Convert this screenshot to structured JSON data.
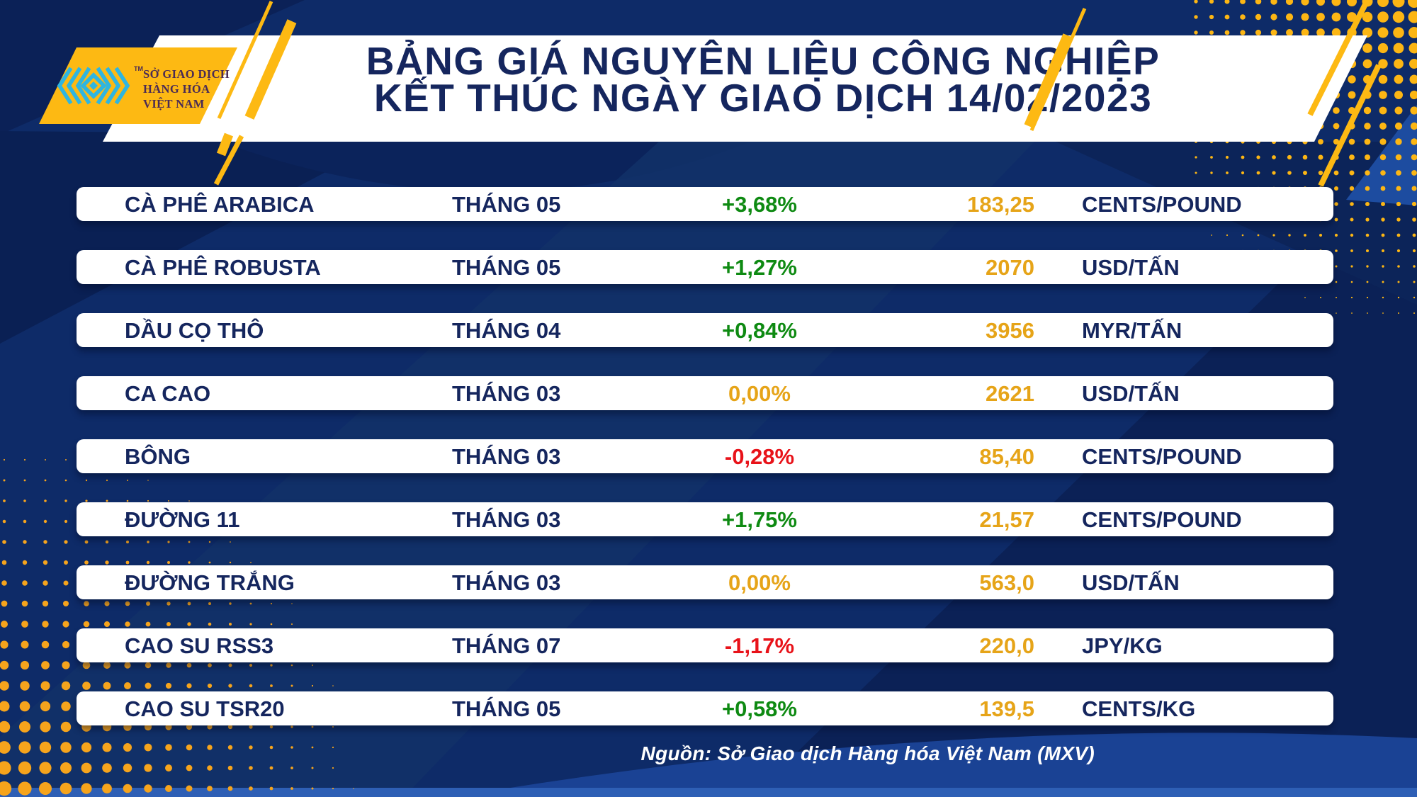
{
  "header": {
    "logo": {
      "org_line1": "SỞ GIAO DỊCH",
      "org_line2": "HÀNG HÓA",
      "org_line3": "VIỆT NAM",
      "trademark": "TM"
    },
    "title_line1": "BẢNG GIÁ NGUYÊN LIỆU CÔNG NGHIỆP",
    "title_line2": "KẾT THÚC NGÀY GIAO DỊCH 14/02/2023"
  },
  "chart_data": {
    "type": "table",
    "title": "BẢNG GIÁ NGUYÊN LIỆU CÔNG NGHIỆP KẾT THÚC NGÀY GIAO DỊCH 14/02/2023",
    "rows": [
      {
        "name": "CÀ PHÊ ARABICA",
        "month": "THÁNG 05",
        "change": "+3,68%",
        "price": "183,25",
        "unit": "CENTS/POUND"
      },
      {
        "name": "CÀ PHÊ ROBUSTA",
        "month": "THÁNG 05",
        "change": "+1,27%",
        "price": "2070",
        "unit": "USD/TẤN"
      },
      {
        "name": "DẦU CỌ THÔ",
        "month": "THÁNG 04",
        "change": "+0,84%",
        "price": "3956",
        "unit": "MYR/TẤN"
      },
      {
        "name": "CA CAO",
        "month": "THÁNG 03",
        "change": "0,00%",
        "price": "2621",
        "unit": "USD/TẤN"
      },
      {
        "name": "BÔNG",
        "month": "THÁNG 03",
        "change": "-0,28%",
        "price": "85,40",
        "unit": "CENTS/POUND"
      },
      {
        "name": "ĐƯỜNG 11",
        "month": "THÁNG 03",
        "change": "+1,75%",
        "price": "21,57",
        "unit": "CENTS/POUND"
      },
      {
        "name": "ĐƯỜNG TRẮNG",
        "month": "THÁNG 03",
        "change": "0,00%",
        "price": "563,0",
        "unit": "USD/TẤN"
      },
      {
        "name": "CAO SU RSS3",
        "month": "THÁNG 07",
        "change": "-1,17%",
        "price": "220,0",
        "unit": "JPY/KG"
      },
      {
        "name": "CAO SU TSR20",
        "month": "THÁNG 05",
        "change": "+0,58%",
        "price": "139,5",
        "unit": "CENTS/KG"
      }
    ]
  },
  "footer": {
    "source": "Nguồn: Sở Giao dịch Hàng hóa Việt Nam (MXV)"
  },
  "colors": {
    "background": "#0E2B68",
    "accent_gold": "#FDB913",
    "navy_text": "#15265E",
    "up_green": "#0E8A12",
    "down_red": "#E81219",
    "flat_gold": "#E6A418",
    "price_gold": "#E6A418",
    "logo_cyan": "#2FB5E1",
    "logo_text": "#4A2B55"
  }
}
